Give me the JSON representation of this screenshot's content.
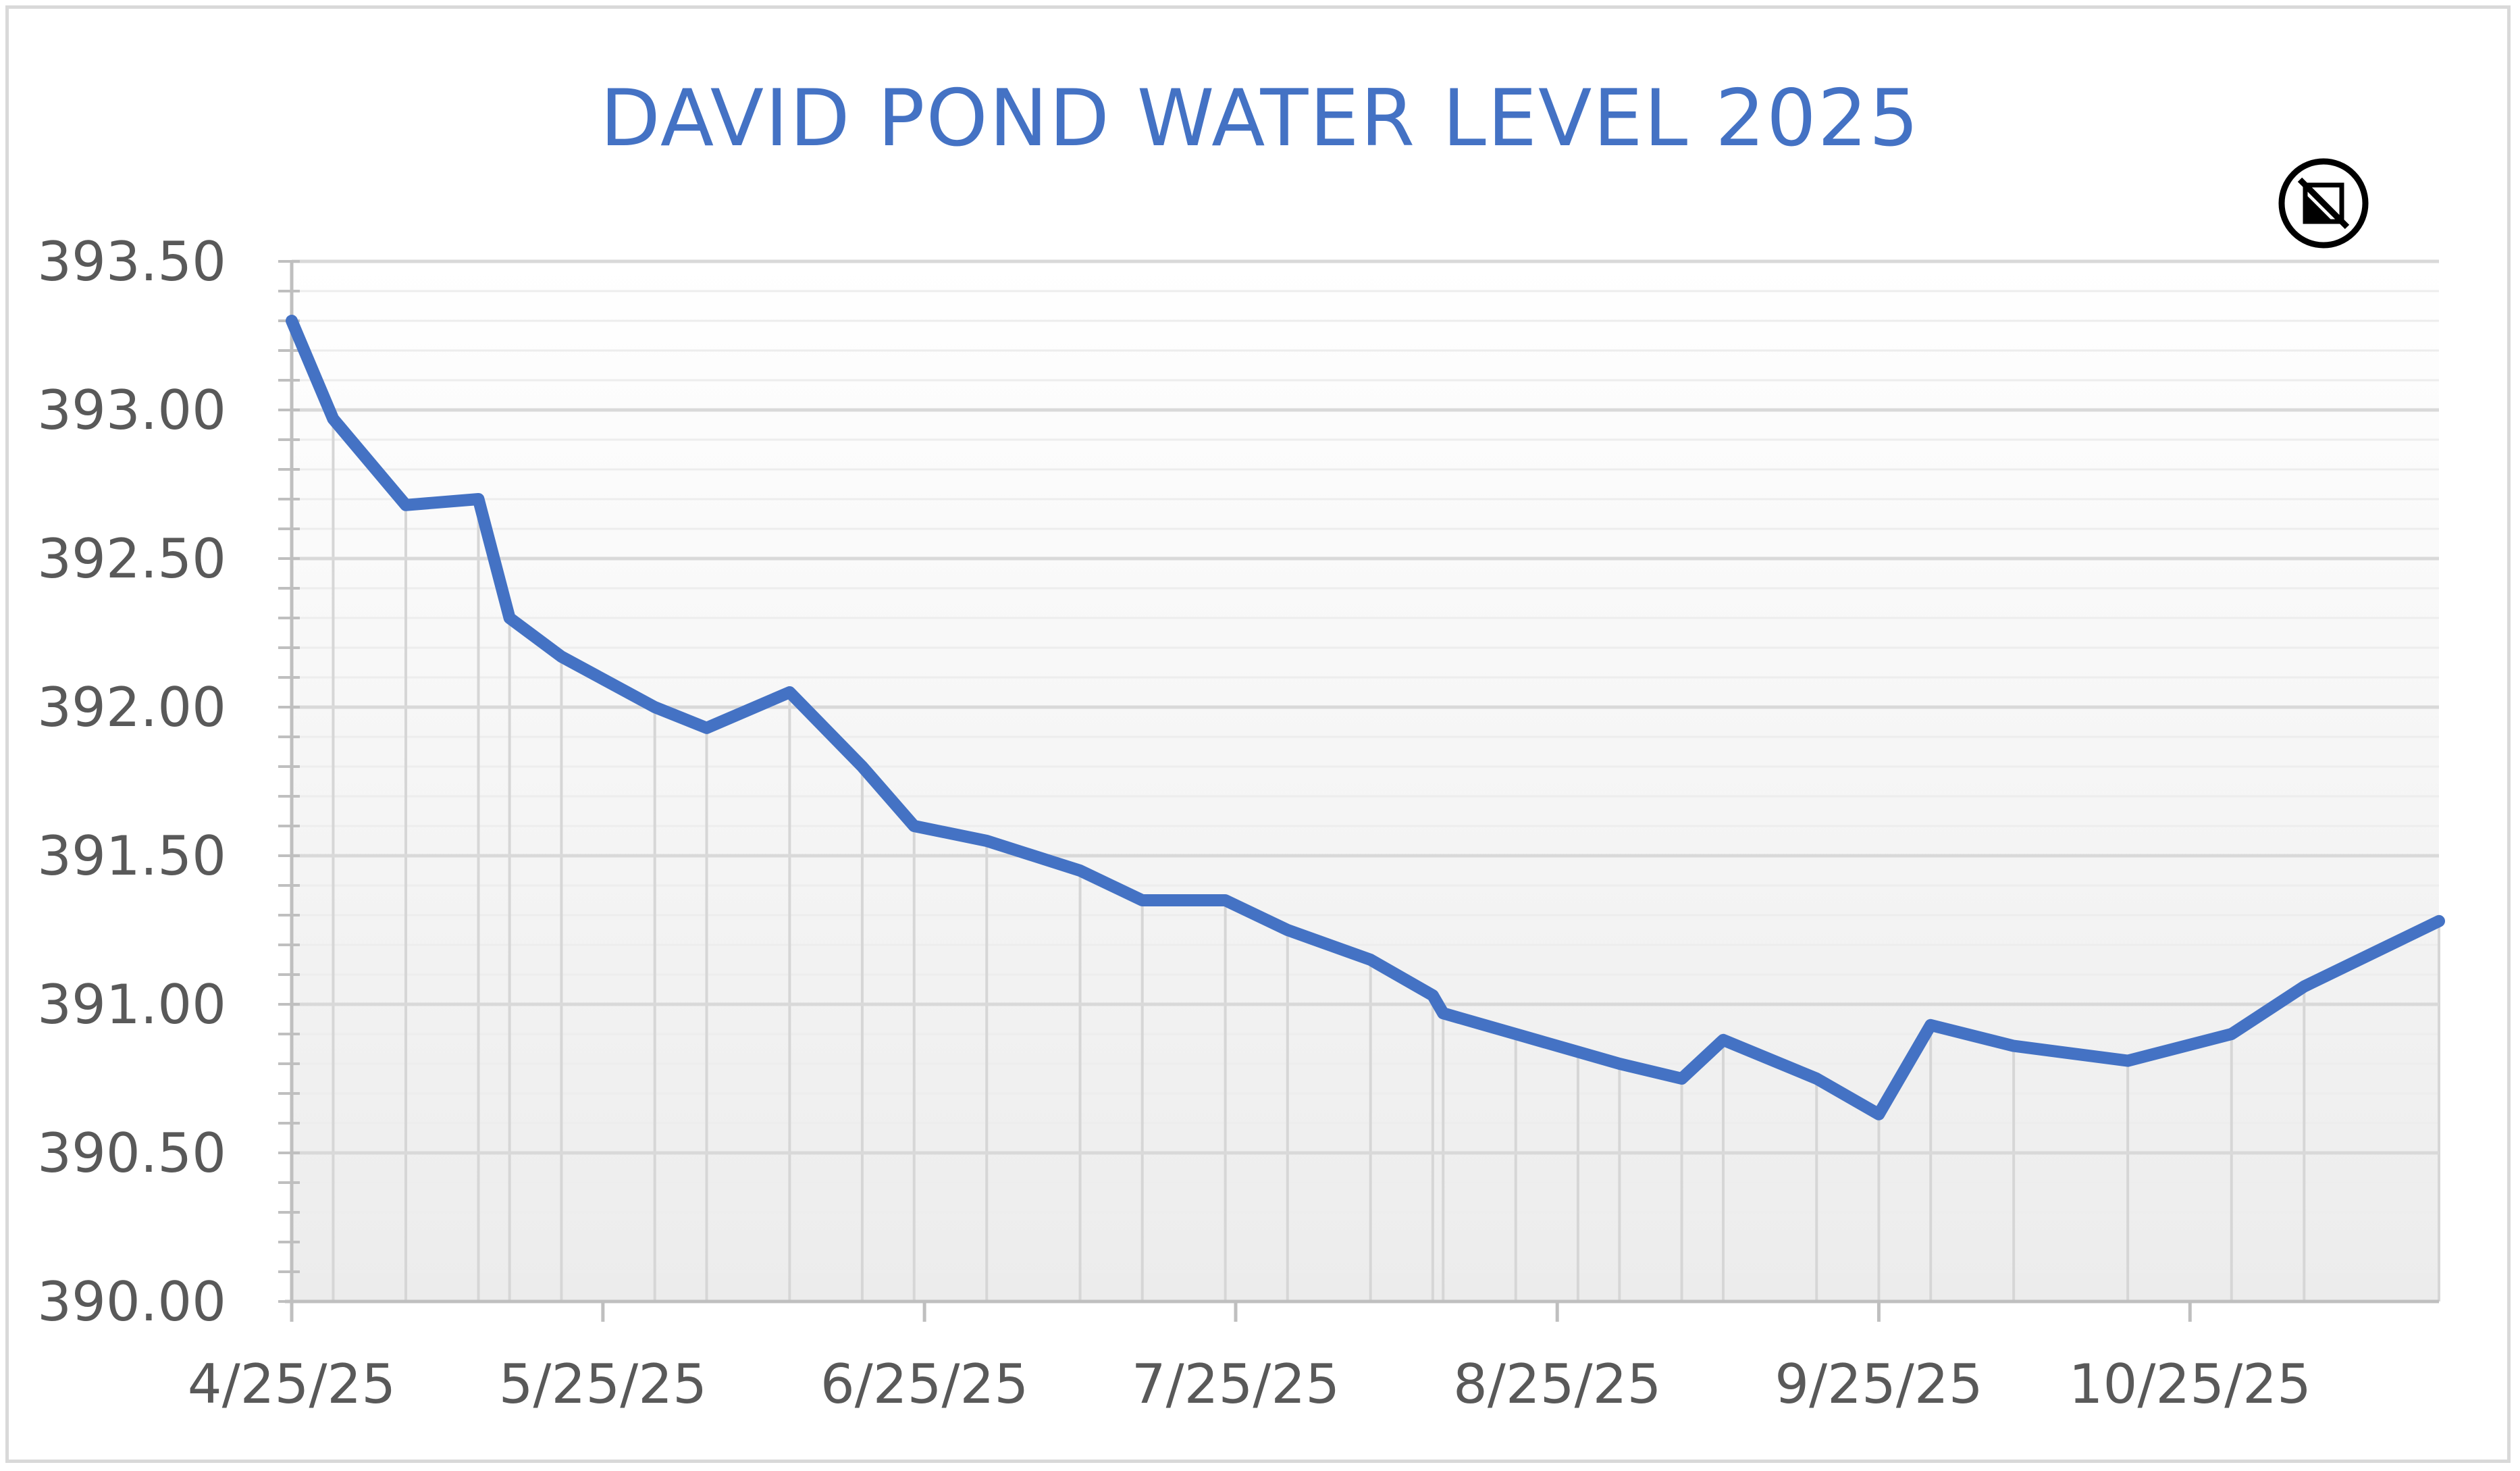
{
  "chart_data": {
    "type": "line",
    "title": "DAVID POND WATER LEVEL 2025",
    "xlabel": "",
    "ylabel": "",
    "ylim": [
      390.0,
      393.5
    ],
    "yticks": [
      "393.50",
      "393.00",
      "392.50",
      "392.00",
      "391.50",
      "391.00",
      "390.50",
      "390.00"
    ],
    "x_axis_type": "date",
    "xlim": [
      "2025-04-25",
      "2025-11-18"
    ],
    "xticks": [
      {
        "date": "2025-04-25",
        "label": "4/25/25"
      },
      {
        "date": "2025-05-25",
        "label": "5/25/25"
      },
      {
        "date": "2025-06-25",
        "label": "6/25/25"
      },
      {
        "date": "2025-07-25",
        "label": "7/25/25"
      },
      {
        "date": "2025-08-25",
        "label": "8/25/25"
      },
      {
        "date": "2025-09-25",
        "label": "9/25/25"
      },
      {
        "date": "2025-10-25",
        "label": "10/25/25"
      }
    ],
    "grid": true,
    "legend": "none",
    "line_color": "#4472c4",
    "series": [
      {
        "name": "",
        "points": [
          {
            "x": "2025-04-25",
            "y": 393.3
          },
          {
            "x": "2025-04-29",
            "y": 392.97
          },
          {
            "x": "2025-05-06",
            "y": 392.68
          },
          {
            "x": "2025-05-13",
            "y": 392.7
          },
          {
            "x": "2025-05-16",
            "y": 392.3
          },
          {
            "x": "2025-05-21",
            "y": 392.17
          },
          {
            "x": "2025-05-30",
            "y": 392.0
          },
          {
            "x": "2025-06-04",
            "y": 391.93
          },
          {
            "x": "2025-06-12",
            "y": 392.05
          },
          {
            "x": "2025-06-19",
            "y": 391.8
          },
          {
            "x": "2025-06-24",
            "y": 391.6
          },
          {
            "x": "2025-07-01",
            "y": 391.55
          },
          {
            "x": "2025-07-10",
            "y": 391.45
          },
          {
            "x": "2025-07-16",
            "y": 391.35
          },
          {
            "x": "2025-07-24",
            "y": 391.35
          },
          {
            "x": "2025-07-30",
            "y": 391.25
          },
          {
            "x": "2025-08-07",
            "y": 391.15
          },
          {
            "x": "2025-08-13",
            "y": 391.03
          },
          {
            "x": "2025-08-14",
            "y": 390.97
          },
          {
            "x": "2025-08-21",
            "y": 390.9
          },
          {
            "x": "2025-08-27",
            "y": 390.84
          },
          {
            "x": "2025-08-31",
            "y": 390.8
          },
          {
            "x": "2025-09-06",
            "y": 390.75
          },
          {
            "x": "2025-09-10",
            "y": 390.88
          },
          {
            "x": "2025-09-19",
            "y": 390.75
          },
          {
            "x": "2025-09-25",
            "y": 390.63
          },
          {
            "x": "2025-09-30",
            "y": 390.93
          },
          {
            "x": "2025-10-08",
            "y": 390.86
          },
          {
            "x": "2025-10-19",
            "y": 390.81
          },
          {
            "x": "2025-10-29",
            "y": 390.9
          },
          {
            "x": "2025-11-05",
            "y": 391.06
          },
          {
            "x": "2025-11-18",
            "y": 391.28
          }
        ]
      }
    ]
  }
}
